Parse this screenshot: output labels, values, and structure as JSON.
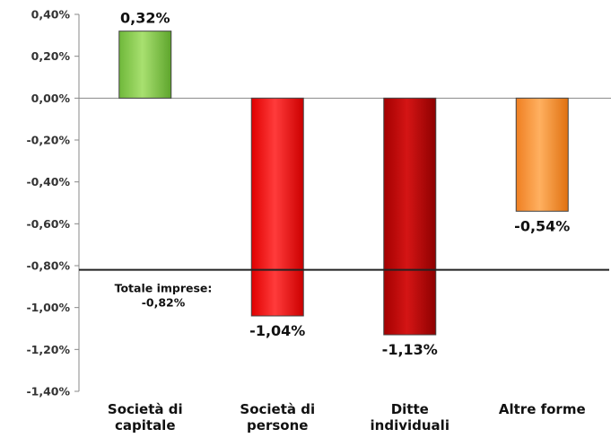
{
  "chart_data": {
    "type": "bar",
    "categories": [
      [
        "Società di",
        "capitale"
      ],
      [
        "Società di",
        "persone"
      ],
      [
        "Ditte",
        "individuali"
      ],
      [
        "Altre forme"
      ]
    ],
    "values": [
      0.32,
      -1.04,
      -1.13,
      -0.54
    ],
    "data_labels": [
      "0,32%",
      "-1,04%",
      "-1,13%",
      "-0,54%"
    ],
    "colors": [
      "#8fd14f",
      "#ff1a1a",
      "#c00000",
      "#ff9a3c"
    ],
    "ylim": [
      -1.4,
      0.4
    ],
    "yticks": [
      0.4,
      0.2,
      0.0,
      -0.2,
      -0.4,
      -0.6,
      -0.8,
      -1.0,
      -1.2,
      -1.4
    ],
    "ytick_labels": [
      "0,40%",
      "0,20%",
      "0,00%",
      "-0,20%",
      "-0,40%",
      "-0,60%",
      "-0,80%",
      "-1,00%",
      "-1,20%",
      "-1,40%"
    ],
    "reference_line": {
      "value": -0.82,
      "label_lines": [
        "Totale imprese:",
        "-0,82%"
      ]
    },
    "grid": false,
    "legend": "none"
  }
}
